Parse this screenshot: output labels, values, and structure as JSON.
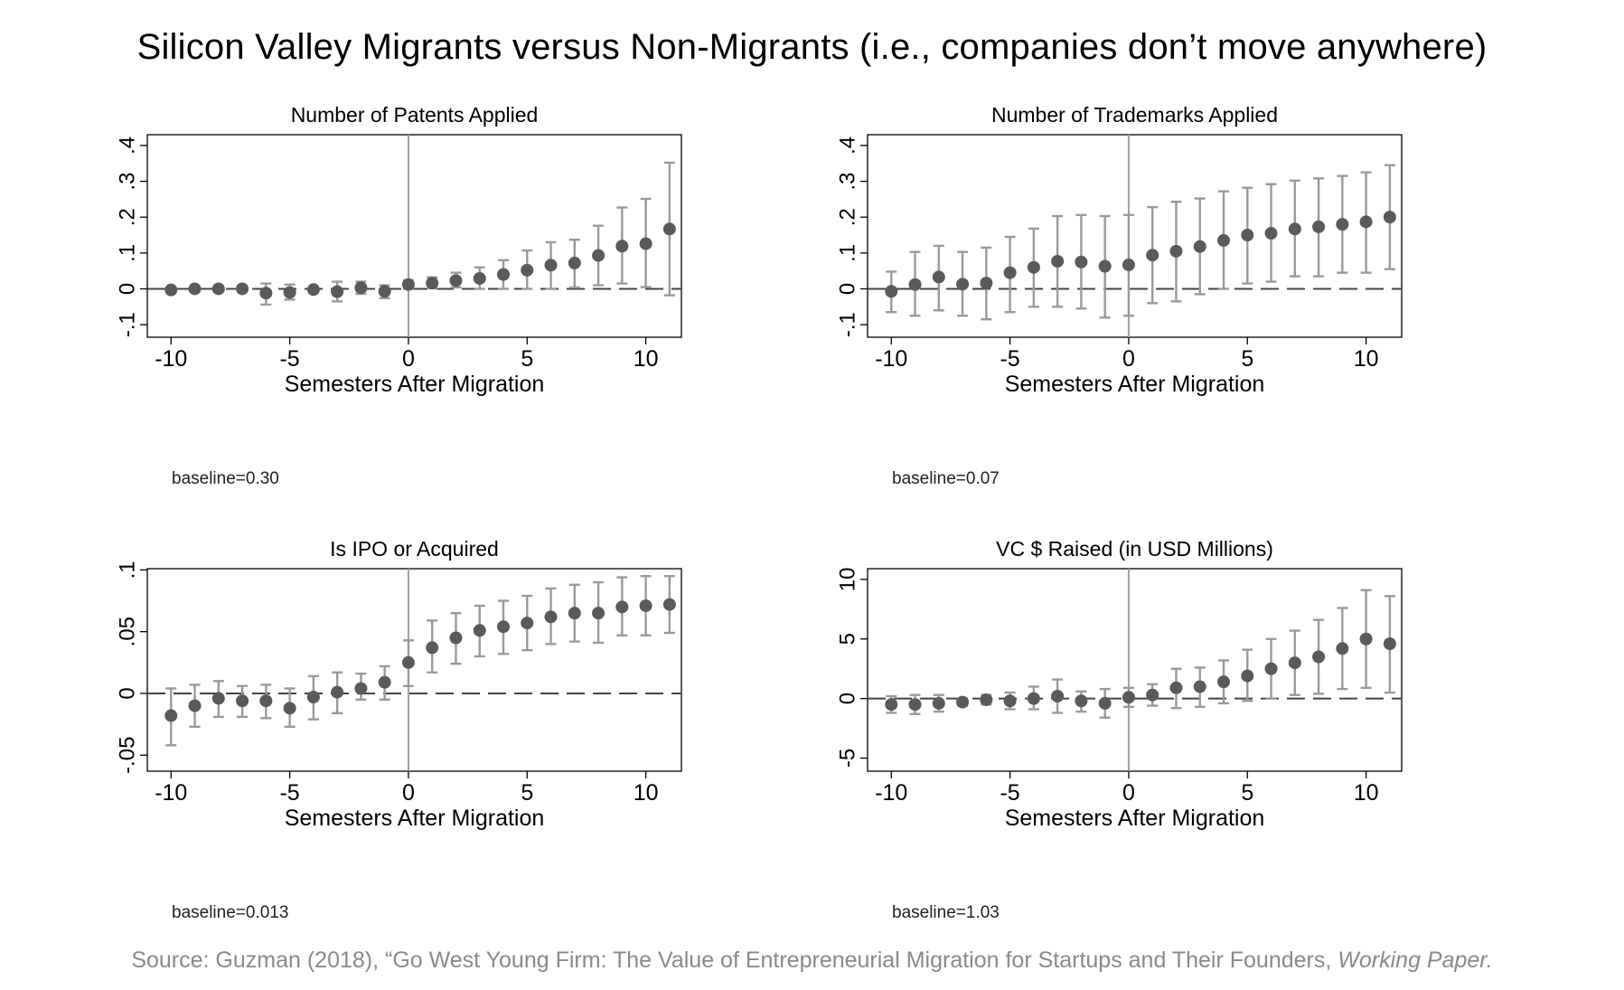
{
  "title": "Silicon Valley Migrants versus Non-Migrants (i.e., companies don’t move anywhere)",
  "source": {
    "text": "Source: Guzman (2018), “Go West Young Firm: The Value of Entrepreneurial Migration for Startups and Their Founders,",
    "italic": "Working Paper."
  },
  "colors": {
    "point": "#5a5a5a",
    "ci": "#9a9a9a",
    "zero_line": "#444444",
    "event_line": "#a0a0a0",
    "axis": "#000000"
  },
  "chart_data": [
    {
      "type": "scatter",
      "title": "Number of Patents Applied",
      "xlabel": "Semesters After Migration",
      "ylabel": "",
      "baseline": "baseline=0.30",
      "xlim": [
        -11,
        11.5
      ],
      "ylim": [
        -0.135,
        0.43
      ],
      "xticks": [
        -10,
        -5,
        0,
        5,
        10
      ],
      "xtick_labels": [
        "-10",
        "-5",
        "0",
        "5",
        "10"
      ],
      "yticks": [
        -0.1,
        0,
        0.1,
        0.2,
        0.3,
        0.4
      ],
      "ytick_labels": [
        "-.1",
        "0",
        ".1",
        ".2",
        ".3",
        ".4"
      ],
      "x": [
        -10,
        -9,
        -8,
        -7,
        -6,
        -5,
        -4,
        -3,
        -2,
        -1,
        0,
        1,
        2,
        3,
        4,
        5,
        6,
        7,
        8,
        9,
        10,
        11
      ],
      "y": [
        -0.003,
        0.0,
        0.0,
        0.0,
        -0.012,
        -0.01,
        -0.002,
        -0.008,
        0.003,
        -0.007,
        0.012,
        0.016,
        0.023,
        0.029,
        0.04,
        0.052,
        0.066,
        0.072,
        0.093,
        0.119,
        0.126,
        0.167
      ],
      "ci_low": [
        -0.01,
        -0.007,
        -0.006,
        -0.008,
        -0.044,
        -0.03,
        -0.01,
        -0.035,
        -0.014,
        -0.026,
        0.0,
        0.002,
        0.004,
        0.0,
        0.0,
        0.0,
        0.0,
        0.004,
        0.01,
        0.015,
        0.005,
        -0.018
      ],
      "ci_high": [
        0.004,
        0.007,
        0.006,
        0.008,
        0.015,
        0.012,
        0.006,
        0.02,
        0.02,
        0.01,
        0.024,
        0.032,
        0.045,
        0.06,
        0.08,
        0.107,
        0.13,
        0.137,
        0.176,
        0.227,
        0.251,
        0.352
      ]
    },
    {
      "type": "scatter",
      "title": "Number of Trademarks Applied",
      "xlabel": "Semesters After Migration",
      "ylabel": "",
      "baseline": "baseline=0.07",
      "xlim": [
        -11,
        11.5
      ],
      "ylim": [
        -0.135,
        0.43
      ],
      "xticks": [
        -10,
        -5,
        0,
        5,
        10
      ],
      "xtick_labels": [
        "-10",
        "-5",
        "0",
        "5",
        "10"
      ],
      "yticks": [
        -0.1,
        0,
        0.1,
        0.2,
        0.3,
        0.4
      ],
      "ytick_labels": [
        "-.1",
        "0",
        ".1",
        ".2",
        ".3",
        ".4"
      ],
      "x": [
        -10,
        -9,
        -8,
        -7,
        -6,
        -5,
        -4,
        -3,
        -2,
        -1,
        0,
        1,
        2,
        3,
        4,
        5,
        6,
        7,
        8,
        9,
        10,
        11
      ],
      "y": [
        -0.007,
        0.012,
        0.033,
        0.013,
        0.016,
        0.045,
        0.06,
        0.077,
        0.075,
        0.063,
        0.067,
        0.094,
        0.105,
        0.118,
        0.135,
        0.15,
        0.155,
        0.167,
        0.173,
        0.18,
        0.187,
        0.2
      ],
      "ci_low": [
        -0.065,
        -0.075,
        -0.06,
        -0.075,
        -0.085,
        -0.065,
        -0.05,
        -0.05,
        -0.055,
        -0.08,
        -0.075,
        -0.04,
        -0.035,
        -0.015,
        0.0,
        0.015,
        0.02,
        0.035,
        0.035,
        0.045,
        0.045,
        0.055
      ],
      "ci_high": [
        0.048,
        0.103,
        0.12,
        0.103,
        0.115,
        0.145,
        0.168,
        0.203,
        0.206,
        0.203,
        0.206,
        0.228,
        0.243,
        0.252,
        0.272,
        0.282,
        0.292,
        0.302,
        0.308,
        0.315,
        0.325,
        0.345
      ]
    },
    {
      "type": "scatter",
      "title": "Is IPO or Acquired",
      "xlabel": "Semesters After Migration",
      "ylabel": "",
      "baseline": "baseline=0.013",
      "xlim": [
        -11,
        11.5
      ],
      "ylim": [
        -0.063,
        0.101
      ],
      "xticks": [
        -10,
        -5,
        0,
        5,
        10
      ],
      "xtick_labels": [
        "-10",
        "-5",
        "0",
        "5",
        "10"
      ],
      "yticks": [
        -0.05,
        0,
        0.05,
        0.1
      ],
      "ytick_labels": [
        "-.05",
        "0",
        ".05",
        ".1"
      ],
      "x": [
        -10,
        -9,
        -8,
        -7,
        -6,
        -5,
        -4,
        -3,
        -2,
        -1,
        0,
        1,
        2,
        3,
        4,
        5,
        6,
        7,
        8,
        9,
        10,
        11
      ],
      "y": [
        -0.018,
        -0.01,
        -0.004,
        -0.006,
        -0.006,
        -0.012,
        -0.003,
        0.001,
        0.004,
        0.009,
        0.025,
        0.037,
        0.045,
        0.051,
        0.054,
        0.057,
        0.062,
        0.065,
        0.065,
        0.07,
        0.071,
        0.072
      ],
      "ci_low": [
        -0.042,
        -0.027,
        -0.019,
        -0.019,
        -0.02,
        -0.027,
        -0.021,
        -0.016,
        -0.005,
        -0.005,
        0.006,
        0.017,
        0.024,
        0.03,
        0.032,
        0.035,
        0.04,
        0.042,
        0.041,
        0.047,
        0.047,
        0.049
      ],
      "ci_high": [
        0.004,
        0.007,
        0.01,
        0.006,
        0.007,
        0.004,
        0.014,
        0.017,
        0.016,
        0.022,
        0.043,
        0.059,
        0.065,
        0.071,
        0.075,
        0.079,
        0.085,
        0.088,
        0.09,
        0.094,
        0.095,
        0.095
      ]
    },
    {
      "type": "scatter",
      "title": "VC $ Raised (in USD Millions)",
      "xlabel": "Semesters After Migration",
      "ylabel": "",
      "baseline": "baseline=1.03",
      "xlim": [
        -11,
        11.5
      ],
      "ylim": [
        -6.1,
        10.9
      ],
      "xticks": [
        -10,
        -5,
        0,
        5,
        10
      ],
      "xtick_labels": [
        "-10",
        "-5",
        "0",
        "5",
        "10"
      ],
      "yticks": [
        -5,
        0,
        5,
        10
      ],
      "ytick_labels": [
        "-5",
        "0",
        "5",
        "10"
      ],
      "x": [
        -10,
        -9,
        -8,
        -7,
        -6,
        -5,
        -4,
        -3,
        -2,
        -1,
        0,
        1,
        2,
        3,
        4,
        5,
        6,
        7,
        8,
        9,
        10,
        11
      ],
      "y": [
        -0.5,
        -0.5,
        -0.4,
        -0.3,
        -0.1,
        -0.2,
        0.0,
        0.2,
        -0.2,
        -0.4,
        0.1,
        0.3,
        0.9,
        1.0,
        1.4,
        1.9,
        2.5,
        3.0,
        3.5,
        4.2,
        5.0,
        4.6
      ],
      "ci_low": [
        -1.2,
        -1.3,
        -1.1,
        -0.6,
        -0.5,
        -0.9,
        -0.9,
        -1.2,
        -1.1,
        -1.6,
        -0.7,
        -0.6,
        -0.8,
        -0.7,
        -0.4,
        -0.2,
        0.0,
        0.3,
        0.4,
        0.8,
        0.9,
        0.5
      ],
      "ci_high": [
        0.2,
        0.3,
        0.3,
        0.0,
        0.3,
        0.5,
        1.0,
        1.6,
        0.6,
        0.8,
        0.9,
        1.2,
        2.5,
        2.6,
        3.2,
        4.1,
        5.0,
        5.7,
        6.6,
        7.6,
        9.1,
        8.6
      ]
    }
  ]
}
